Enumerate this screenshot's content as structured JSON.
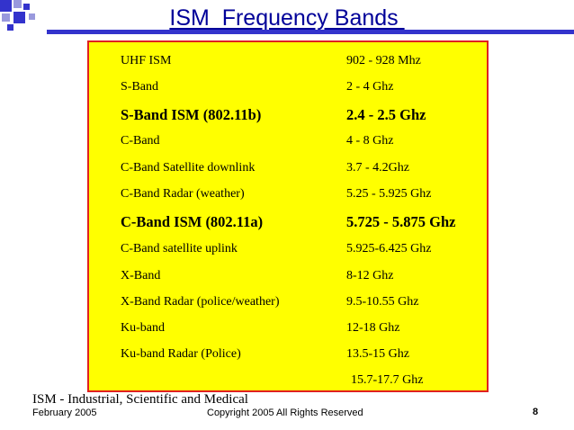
{
  "slide": {
    "title": "ISM  Frequency Bands ",
    "accent_color": "#000099",
    "table_background": "#ffff00",
    "table_border": "#e02020"
  },
  "bands": [
    {
      "name": "UHF ISM",
      "freq": "902 - 928 Mhz",
      "emphasis": false
    },
    {
      "name": "S-Band",
      "freq": "2 - 4 Ghz",
      "emphasis": false
    },
    {
      "name": "S-Band ISM (802.11b)",
      "freq": "2.4 - 2.5 Ghz",
      "emphasis": true
    },
    {
      "name": "C-Band",
      "freq": "4 - 8 Ghz",
      "emphasis": false
    },
    {
      "name": "C-Band Satellite downlink",
      "freq": "3.7 - 4.2Ghz",
      "emphasis": false
    },
    {
      "name": "C-Band Radar (weather)",
      "freq": "5.25 - 5.925 Ghz",
      "emphasis": false
    },
    {
      "name": "C-Band ISM (802.11a)",
      "freq": "5.725 - 5.875 Ghz",
      "emphasis": true
    },
    {
      "name": "C-Band satellite uplink",
      "freq": "5.925-6.425 Ghz",
      "emphasis": false
    },
    {
      "name": "X-Band",
      "freq": "8-12 Ghz",
      "emphasis": false
    },
    {
      "name": "X-Band Radar (police/weather)",
      "freq": "9.5-10.55 Ghz",
      "emphasis": false
    },
    {
      "name": "Ku-band",
      "freq": "12-18 Ghz",
      "emphasis": false
    },
    {
      "name": "Ku-band Radar (Police)",
      "freq": "13.5-15 Ghz",
      "emphasis": false
    },
    {
      "name": "",
      "freq": "15.7-17.7 Ghz",
      "emphasis": false
    }
  ],
  "footnote": "ISM - Industrial, Scientific and Medical",
  "footer": {
    "date": "February 2005",
    "copyright": "Copyright 2005 All Rights Reserved",
    "page_number": "8"
  }
}
